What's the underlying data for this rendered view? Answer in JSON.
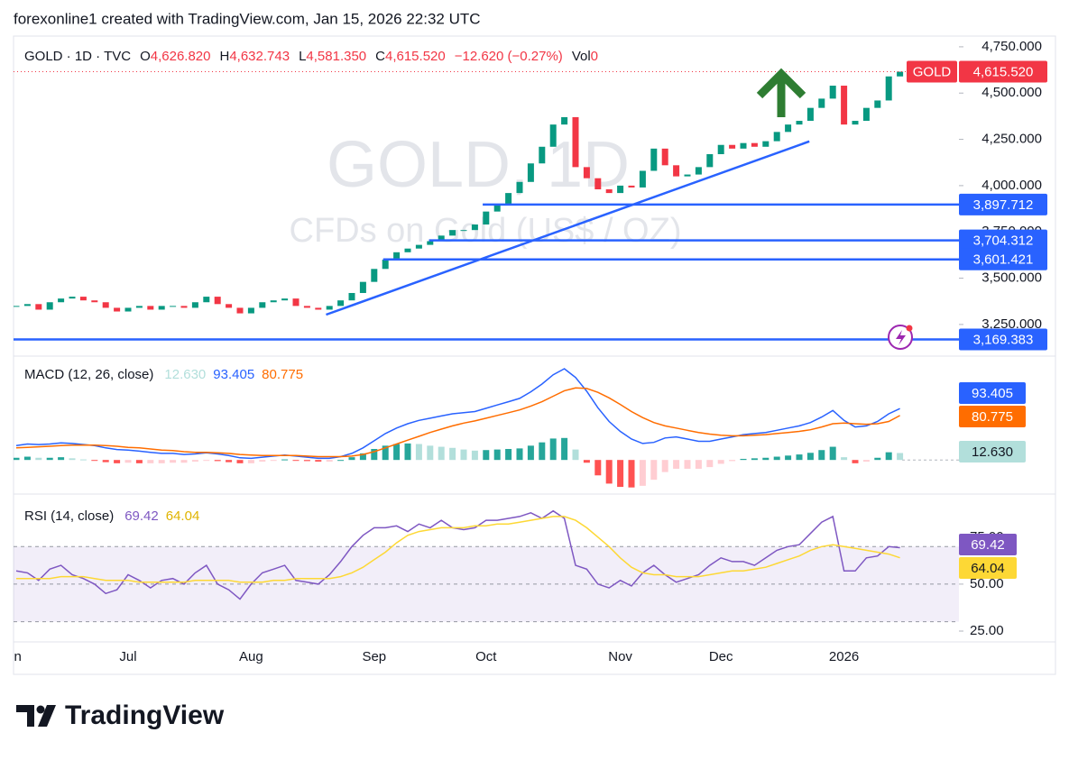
{
  "header": {
    "attribution": "forexonline1 created with TradingView.com, Jan 15, 2026 22:32 UTC"
  },
  "footer": {
    "brand": "TradingView"
  },
  "chart_data": [
    {
      "type": "candlestick",
      "title": "GOLD · 1D · TVC",
      "watermark": [
        "GOLD, 1D",
        "CFDs on Gold (US$ / OZ)"
      ],
      "ohlc_labels": [
        {
          "key": "O",
          "value": "4,626.820"
        },
        {
          "key": "H",
          "value": "4,632.743"
        },
        {
          "key": "L",
          "value": "4,581.350"
        },
        {
          "key": "C",
          "value": "4,615.520"
        }
      ],
      "change": "−12.620 (−0.27%)",
      "volume": {
        "key": "Vol",
        "value": "0"
      },
      "close": [
        3350,
        3360,
        3330,
        3370,
        3390,
        3400,
        3380,
        3370,
        3340,
        3320,
        3340,
        3350,
        3330,
        3350,
        3350,
        3340,
        3370,
        3400,
        3360,
        3340,
        3310,
        3340,
        3370,
        3380,
        3390,
        3350,
        3340,
        3330,
        3350,
        3380,
        3420,
        3480,
        3550,
        3600,
        3640,
        3660,
        3680,
        3700,
        3730,
        3760,
        3760,
        3790,
        3860,
        3900,
        3960,
        4020,
        4120,
        4210,
        4330,
        4370,
        4100,
        4040,
        3980,
        3960,
        4000,
        3990,
        4080,
        4200,
        4110,
        4050,
        4060,
        4100,
        4170,
        4220,
        4200,
        4230,
        4210,
        4240,
        4290,
        4330,
        4350,
        4420,
        4470,
        4540,
        4330,
        4350,
        4420,
        4460,
        4590,
        4615.52
      ],
      "color_up": "#089981",
      "color_down": "#f23645",
      "ylim": [
        3079,
        4808
      ],
      "yticks": [
        {
          "value": 3250,
          "label": "3,250.000"
        },
        {
          "value": 3500,
          "label": "3,500.000"
        },
        {
          "value": 3750,
          "label": "3,750.000"
        },
        {
          "value": 4000,
          "label": "4,000.000"
        },
        {
          "value": 4250,
          "label": "4,250.000"
        },
        {
          "value": 4500,
          "label": "4,500.000"
        },
        {
          "value": 4750,
          "label": "4,750.000"
        }
      ],
      "last": {
        "name": "GOLD",
        "label": "4,615.520"
      },
      "levels": [
        {
          "x": 41.7,
          "value": 3897.712,
          "label": "3,897.712"
        },
        {
          "x": 36.9,
          "value": 3704.312,
          "label": "3,704.312"
        },
        {
          "x": 32.8,
          "value": 3601.421,
          "label": "3,601.421"
        },
        {
          "x": -1.5,
          "value": 3169.383,
          "label": "3,169.383"
        }
      ],
      "levels_color": "#2962ff",
      "trendline": {
        "x": [
          27.7,
          70.9
        ],
        "values": [
          3303,
          4239
        ]
      }
    },
    {
      "type": "line",
      "title": "MACD (12, 26, close)",
      "ylim": [
        -62,
        184
      ],
      "series": [
        {
          "color": "#2962ff",
          "values": [
            26,
            29,
            28,
            29,
            31,
            30,
            28,
            26,
            22,
            19,
            18,
            16,
            14,
            12,
            12,
            10,
            11,
            13,
            11,
            8,
            4,
            3,
            5,
            7,
            9,
            7,
            5,
            3,
            3,
            6,
            12,
            22,
            35,
            48,
            58,
            66,
            72,
            76,
            80,
            84,
            86,
            88,
            94,
            100,
            106,
            112,
            124,
            138,
            155,
            166,
            150,
            125,
            95,
            70,
            52,
            38,
            30,
            32,
            40,
            42,
            38,
            34,
            34,
            38,
            42,
            46,
            48,
            50,
            54,
            58,
            62,
            68,
            78,
            90,
            72,
            60,
            62,
            70,
            84,
            93.405
          ]
        },
        {
          "color": "#ff6d00",
          "values": [
            22,
            23,
            24,
            25,
            26,
            27,
            27,
            27,
            26,
            25,
            23,
            22,
            20,
            18,
            17,
            15,
            14,
            14,
            13,
            12,
            10,
            9,
            8,
            8,
            8,
            8,
            7,
            6,
            6,
            6,
            7,
            10,
            15,
            22,
            29,
            36,
            43,
            50,
            56,
            62,
            67,
            71,
            76,
            81,
            86,
            91,
            98,
            106,
            116,
            126,
            131,
            130,
            123,
            113,
            101,
            88,
            77,
            68,
            62,
            58,
            54,
            50,
            47,
            45,
            44,
            44,
            45,
            46,
            48,
            50,
            52,
            55,
            60,
            66,
            67,
            66,
            65,
            66,
            70,
            80.775
          ]
        }
      ],
      "histogram": {
        "colors": [
          "#26a69a",
          "#b2dfdb",
          "#ff5252",
          "#ffcdd2"
        ],
        "values": [
          4,
          6,
          4,
          4,
          5,
          3,
          1,
          -1,
          -4,
          -6,
          -5,
          -6,
          -6,
          -6,
          -5,
          -5,
          -3,
          -1,
          -2,
          -4,
          -6,
          -6,
          -3,
          -1,
          1,
          -1,
          -2,
          -3,
          -3,
          0,
          5,
          12,
          20,
          26,
          29,
          30,
          29,
          26,
          24,
          22,
          19,
          17,
          18,
          19,
          20,
          21,
          26,
          32,
          39,
          40,
          19,
          -5,
          -28,
          -43,
          -49,
          -50,
          -47,
          -36,
          -22,
          -16,
          -16,
          -16,
          -13,
          -7,
          -2,
          2,
          3,
          4,
          6,
          8,
          10,
          13,
          18,
          24,
          5,
          -6,
          -3,
          4,
          14,
          12.63
        ]
      },
      "legend_labels": [
        "12.630",
        "93.405",
        "80.775"
      ]
    },
    {
      "type": "line",
      "title": "RSI (14, close)",
      "ylim": [
        19,
        97
      ],
      "yticks": [
        {
          "value": 25,
          "label": "25.00"
        },
        {
          "value": 50,
          "label": "50.00"
        },
        {
          "value": 75,
          "label": "75.00"
        }
      ],
      "bands": [
        70,
        50,
        30
      ],
      "series": [
        {
          "color": "#7e57c2",
          "values": [
            57,
            56,
            52,
            58,
            60,
            55,
            53,
            50,
            45,
            47,
            55,
            52,
            48,
            52,
            53,
            50,
            56,
            60,
            50,
            47,
            42,
            50,
            56,
            58,
            60,
            52,
            51,
            50,
            55,
            62,
            70,
            76,
            80,
            80,
            81,
            78,
            82,
            80,
            84,
            80,
            79,
            80,
            84,
            84,
            85,
            86,
            88,
            85,
            89,
            85,
            60,
            58,
            50,
            48,
            52,
            49,
            56,
            60,
            55,
            51,
            53,
            55,
            60,
            64,
            62,
            62,
            60,
            64,
            68,
            70,
            71,
            77,
            83,
            86,
            57,
            57,
            64,
            65,
            70,
            69.42
          ]
        },
        {
          "color": "#fdd835",
          "values": [
            53,
            53,
            53,
            53,
            54,
            54,
            54,
            53,
            52,
            52,
            52,
            51,
            51,
            51,
            51,
            51,
            52,
            52,
            52,
            52,
            51,
            51,
            51,
            52,
            52,
            53,
            53,
            53,
            53,
            54,
            56,
            59,
            63,
            67,
            72,
            76,
            78,
            79,
            80,
            80,
            80,
            81,
            81,
            82,
            82,
            83,
            84,
            85,
            86,
            86,
            84,
            80,
            75,
            70,
            64,
            59,
            56,
            55,
            55,
            54,
            54,
            54,
            55,
            56,
            57,
            57,
            58,
            59,
            61,
            63,
            65,
            68,
            70,
            71,
            70,
            69,
            68,
            67,
            66,
            64.04
          ]
        }
      ],
      "legend_labels": [
        "69.42",
        "64.04"
      ],
      "xticks": [
        {
          "value": -0.5,
          "label": "Jun"
        },
        {
          "value": 10,
          "label": "Jul"
        },
        {
          "value": 21,
          "label": "Aug"
        },
        {
          "value": 32,
          "label": "Sep"
        },
        {
          "value": 42,
          "label": "Oct"
        },
        {
          "value": 54,
          "label": "Nov"
        },
        {
          "value": 63,
          "label": "Dec"
        },
        {
          "value": 74,
          "label": "2026"
        }
      ]
    }
  ]
}
